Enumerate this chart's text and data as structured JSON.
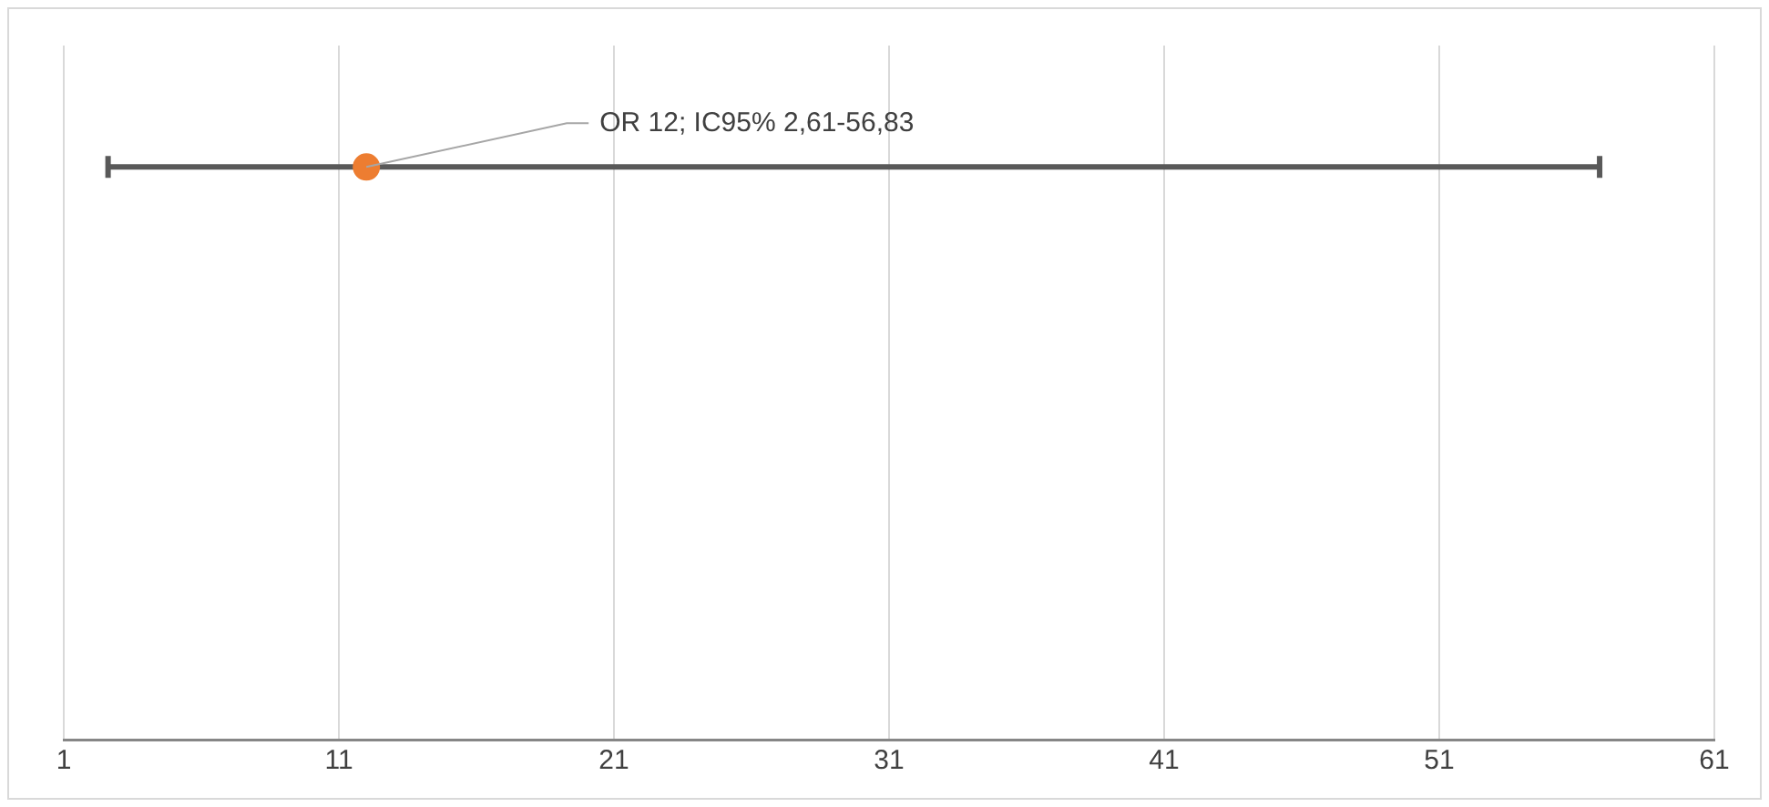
{
  "chart_data": {
    "type": "scatter",
    "orientation": "horizontal",
    "categories": [
      null
    ],
    "values": [
      12
    ],
    "errors": [
      [
        2.61,
        56.83
      ]
    ],
    "color": "#ed7d31",
    "marker": "circle",
    "xlim": [
      1,
      61
    ],
    "xticks": [
      1,
      11,
      21,
      31,
      41,
      51,
      61
    ],
    "grid": "x",
    "tick_labels": "x",
    "annotations": [
      "OR 12; IC95% 2,61-56,83"
    ]
  }
}
